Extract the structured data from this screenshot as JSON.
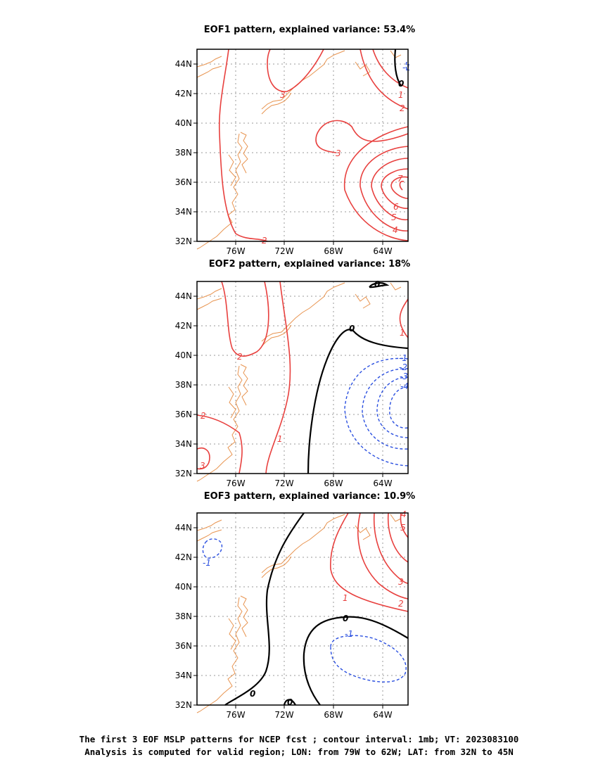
{
  "panels": [
    {
      "title": "EOF1 pattern, explained variance: 53.4%",
      "contour_labels": {
        "red": [
          "3",
          "3",
          "1",
          "2",
          "7",
          "6",
          "5",
          "4",
          "2"
        ],
        "black": [
          "0"
        ],
        "blue": [
          "-1"
        ]
      }
    },
    {
      "title": "EOF2 pattern, explained variance: 18%",
      "contour_labels": {
        "red": [
          "2",
          "2",
          "3",
          "1",
          "1"
        ],
        "black": [
          "0",
          "0"
        ],
        "blue": [
          "-1",
          "-2",
          "-3",
          "-4"
        ]
      }
    },
    {
      "title": "EOF3 pattern, explained variance: 10.9%",
      "contour_labels": {
        "red": [
          "1",
          "2",
          "3",
          "4",
          "5"
        ],
        "black": [
          "0",
          "0",
          "0"
        ],
        "blue": [
          "-1",
          "-1"
        ]
      }
    }
  ],
  "axes": {
    "lat_ticks": [
      "44N",
      "42N",
      "40N",
      "38N",
      "36N",
      "34N",
      "32N"
    ],
    "lon_ticks": [
      "76W",
      "72W",
      "68W",
      "64W"
    ]
  },
  "colors": {
    "positive": "#e8403e",
    "negative": "#2a4fe0",
    "zero": "#000000",
    "coast": "#e89450",
    "grid": "#999999"
  },
  "footer": {
    "line1": "The first 3 EOF MSLP patterns for NCEP fcst ; contour interval: 1mb; VT: 2023083100",
    "line2": "Analysis is computed for valid region; LON: from 79W to 62W; LAT: from 32N to 45N"
  }
}
